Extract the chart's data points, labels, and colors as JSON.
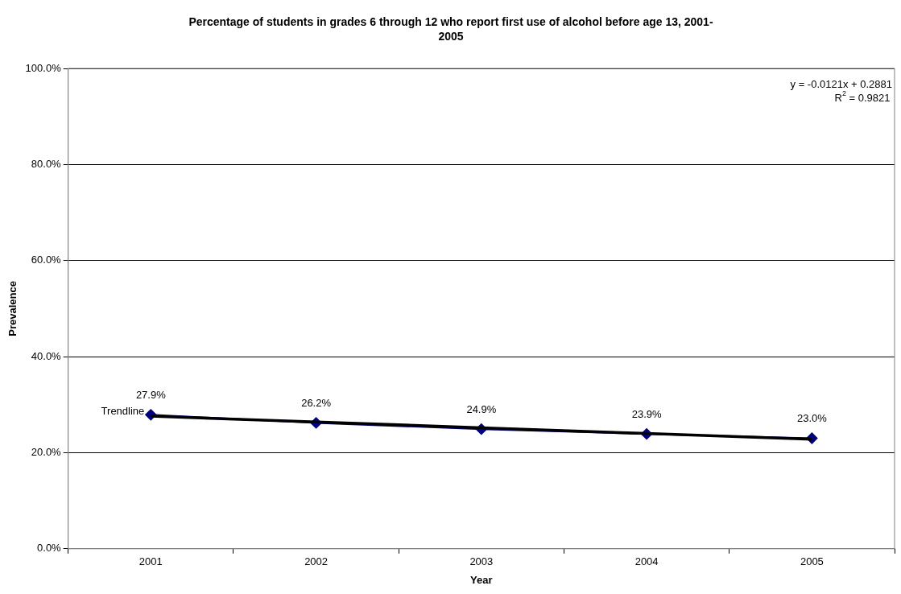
{
  "chart_data": {
    "type": "line",
    "title": "Percentage of students in grades 6 through 12 who report first use of alcohol before age 13, 2001-2005",
    "xlabel": "Year",
    "ylabel": "Prevalence",
    "categories": [
      "2001",
      "2002",
      "2003",
      "2004",
      "2005"
    ],
    "series": [
      {
        "color": "#000080",
        "values": [
          27.9,
          26.2,
          24.9,
          23.9,
          23.0
        ],
        "value_labels": [
          "27.9%",
          "26.2%",
          "24.9%",
          "23.9%",
          "23.0%"
        ],
        "marker": "diamond"
      },
      {
        "type": "line",
        "name": "Trendline",
        "color": "#000000",
        "values": [
          27.6,
          26.4,
          25.2,
          24.0,
          22.8
        ],
        "marker": "none"
      }
    ],
    "ylim": [
      0,
      100
    ],
    "yticks": [
      {
        "value": 0,
        "label": "0.0%"
      },
      {
        "value": 20,
        "label": "20.0%"
      },
      {
        "value": 40,
        "label": "40.0%"
      },
      {
        "value": 60,
        "label": "60.0%"
      },
      {
        "value": 80,
        "label": "80.0%"
      },
      {
        "value": 100,
        "label": "100.0%"
      }
    ],
    "grid": "y",
    "legend": false,
    "annotations": [
      "y = -0.0121x + 0.2881",
      "R$^{2}$ = 0.9821"
    ]
  }
}
